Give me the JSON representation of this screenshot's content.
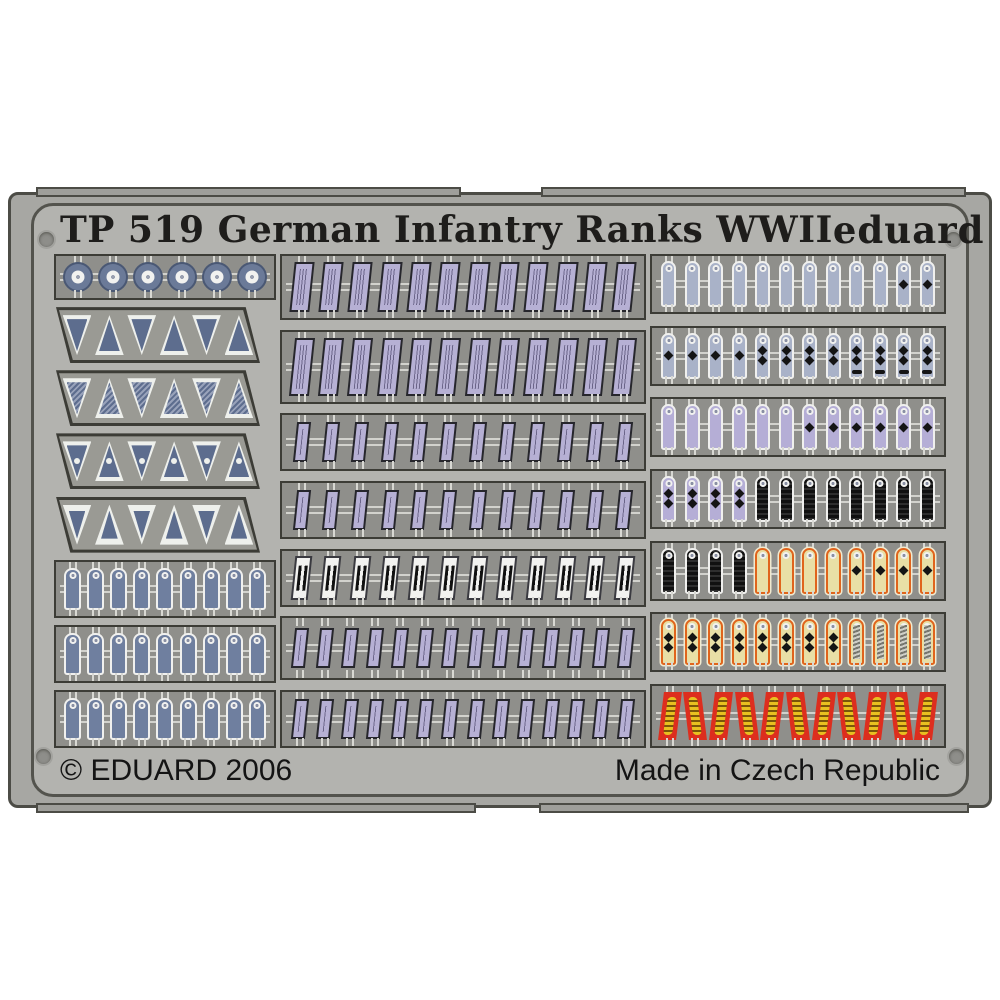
{
  "header": {
    "title": "TP 519 German Infantry Ranks WWII",
    "brand": "eduard"
  },
  "footer": {
    "copyright": "© EDUARD 2006",
    "made_in": "Made in Czech Republic"
  },
  "colors": {
    "sheet_outer": "#a7a7a3",
    "sheet_inner": "#b3b3af",
    "frame_line": "#4c4c46",
    "strip_bg": "#8f8f8b",
    "strip_border": "#3c3c36",
    "steel_blue": "#6f7f9f",
    "pale_board": "#a9b2c8",
    "lavender": "#b5aed6",
    "white_metal": "#f0f0ee",
    "black_braid": "#1d1d1d",
    "gold_border": "#e0641c",
    "gold_fill": "#e9dfa6",
    "red_tab": "#dd2e1e",
    "gold_embroidery": "#e2b81c",
    "title_text": "#1e1d1b",
    "footer_text": "#141414"
  },
  "fret": {
    "columns": [
      {
        "name": "left",
        "rows": [
          {
            "kind": "discs",
            "count": 6
          },
          {
            "kind": "chevrons",
            "variant": "solid"
          },
          {
            "kind": "chevrons",
            "variant": "hatched"
          },
          {
            "kind": "chevrons",
            "variant": "dotted"
          },
          {
            "kind": "chevrons",
            "variant": "double"
          },
          {
            "kind": "boards",
            "variants": [
              "steel",
              "steel",
              "steel",
              "steel",
              "steel",
              "steel",
              "steel",
              "steel",
              "steel"
            ]
          },
          {
            "kind": "boards",
            "variants": [
              "steel",
              "steel",
              "steel",
              "steel",
              "steel",
              "steel",
              "steel",
              "steel",
              "steel"
            ]
          },
          {
            "kind": "boards",
            "variants": [
              "steel",
              "steel",
              "steel",
              "steel",
              "steel",
              "steel",
              "steel",
              "steel",
              "steel"
            ]
          }
        ]
      },
      {
        "name": "middle",
        "rows": [
          {
            "kind": "litzen",
            "style": "framed",
            "count": 12
          },
          {
            "kind": "litzen",
            "style": "framed",
            "count": 12
          },
          {
            "kind": "litzen",
            "style": "plain",
            "count": 12
          },
          {
            "kind": "litzen",
            "style": "plain",
            "count": 12
          },
          {
            "kind": "litzen",
            "style": "white",
            "count": 12
          },
          {
            "kind": "litzen",
            "style": "plain",
            "count": 14
          },
          {
            "kind": "litzen",
            "style": "plain",
            "count": 14
          }
        ]
      },
      {
        "name": "right",
        "rows": [
          {
            "kind": "boards",
            "variants": [
              "pale",
              "pale",
              "pale",
              "pale",
              "pale",
              "pale",
              "pale",
              "pale",
              "pale",
              "pale",
              "pale-pip1",
              "pale-pip1"
            ]
          },
          {
            "kind": "boards",
            "variants": [
              "pale-pip1",
              "pale-pip1",
              "pale-pip1",
              "pale-pip1",
              "pale-pip2",
              "pale-pip2",
              "pale-pip2",
              "pale-pip2",
              "pale-pip2w",
              "pale-pip2w",
              "pale-pip2w",
              "pale-pip2w"
            ]
          },
          {
            "kind": "boards",
            "variants": [
              "lav",
              "lav",
              "lav",
              "lav",
              "lav",
              "lav",
              "lav-pip1",
              "lav-pip1",
              "lav-pip1",
              "lav-pip1",
              "lav-pip1",
              "lav-pip1"
            ]
          },
          {
            "kind": "boards",
            "variants": [
              "lav-pip2",
              "lav-pip2",
              "lav-pip2",
              "lav-pip2",
              "braid",
              "braid",
              "braid",
              "braid",
              "braid",
              "braid",
              "braid",
              "braid"
            ]
          },
          {
            "kind": "boards",
            "variants": [
              "braid",
              "braid",
              "braid",
              "braid",
              "gold",
              "gold",
              "gold",
              "gold",
              "gold-pip1",
              "gold-pip1",
              "gold-pip1",
              "gold-pip1"
            ]
          },
          {
            "kind": "boards",
            "variants": [
              "gold-pip2",
              "gold-pip2",
              "gold-pip2",
              "gold-pip2",
              "gold-pip2",
              "gold-pip2",
              "gold-pip2",
              "gold-pip2",
              "gold-braid",
              "gold-braid",
              "gold-braid",
              "gold-braid"
            ]
          },
          {
            "kind": "redtabs",
            "count": 11
          }
        ]
      }
    ]
  }
}
